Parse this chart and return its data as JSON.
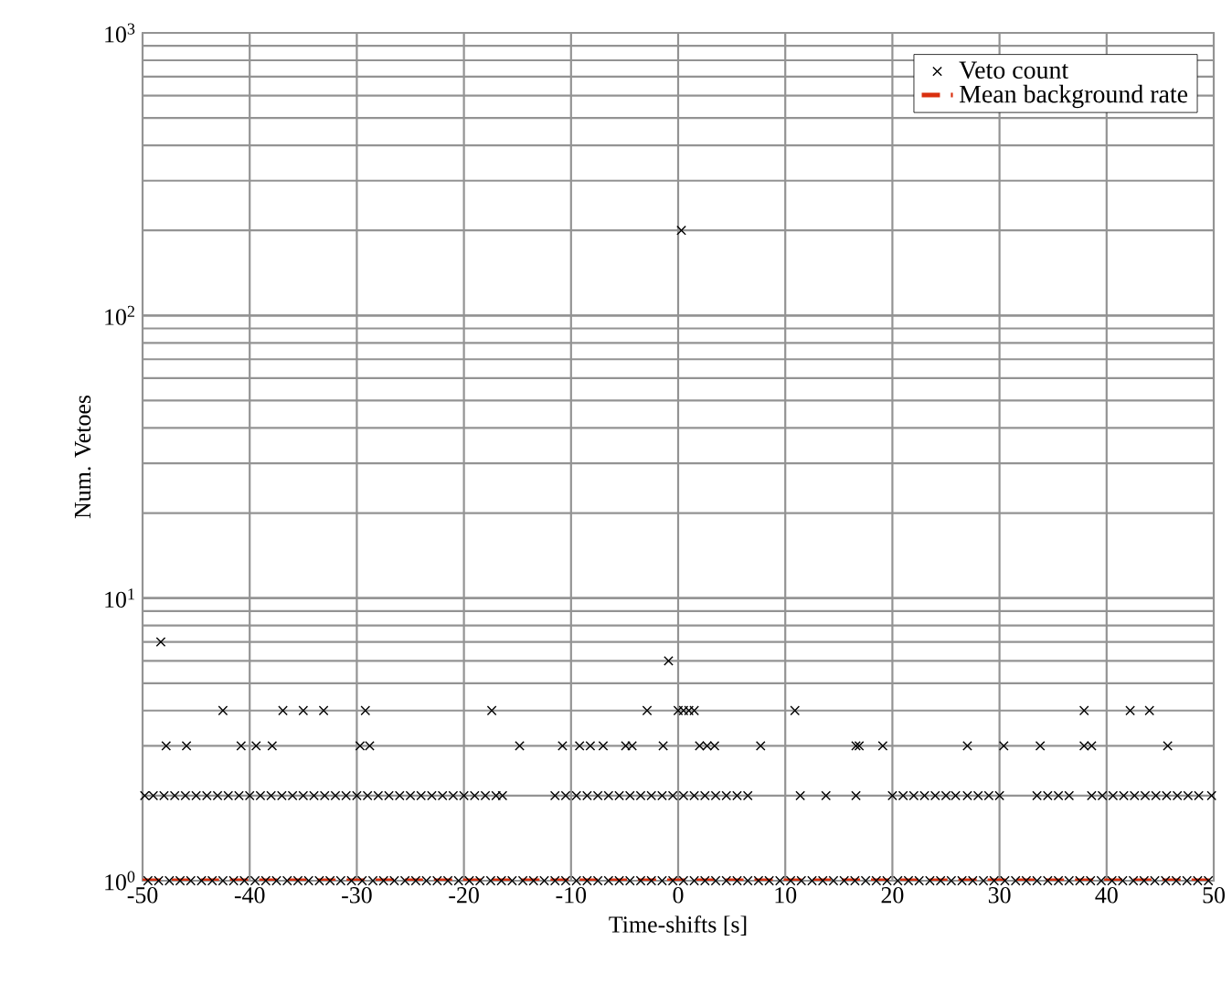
{
  "chart_data": {
    "type": "scatter",
    "xlabel": "Time-shifts [s]",
    "ylabel": "Num. Vetoes",
    "log": "y",
    "grid": true,
    "legend": "top right",
    "xlim": [
      -50,
      50
    ],
    "xticks": [
      -50,
      -40,
      -30,
      -20,
      -10,
      0,
      10,
      20,
      30,
      40,
      50
    ],
    "ylim": [
      1,
      1000
    ],
    "yticks": [
      {
        "value": 1,
        "label": "10$^{0}$"
      },
      {
        "value": 10,
        "label": "10$^{1}$"
      },
      {
        "value": 100,
        "label": "10$^{2}$"
      },
      {
        "value": 1000,
        "label": "10$^{3}$"
      }
    ],
    "series": [
      {
        "name": "Veto count",
        "color": "#000000",
        "marker": "cross",
        "x": [
          -49.5,
          -48.5,
          -47.5,
          -46.5,
          -45.5,
          -44.5,
          -43.5,
          -42.5,
          -41.5,
          -40.5,
          -39.5,
          -38.5,
          -37.5,
          -36.5,
          -35.5,
          -34.5,
          -33.5,
          -32.5,
          -31.5,
          -30.5,
          -29.5,
          -28.5,
          -27.5,
          -26.5,
          -25.5,
          -24.5,
          -23.5,
          -22.5,
          -21.5,
          -20.5,
          -19.5,
          -18.5,
          -17.5,
          -16.5,
          -15.5,
          -14.5,
          -13.5,
          -12.5,
          -11.5,
          -10.5,
          -9.5,
          -8.5,
          -7.5,
          -6.5,
          -5.5,
          -4.5,
          -3.5,
          -2.5,
          -1.5,
          -0.5,
          0.5,
          1.5,
          2.5,
          3.5,
          4.5,
          5.5,
          6.5,
          7.5,
          8.5,
          9.5,
          10.5,
          11.5,
          12.5,
          13.5,
          14.5,
          15.5,
          16.5,
          17.5,
          18.5,
          19.5,
          20.5,
          21.5,
          22.5,
          23.5,
          24.5,
          25.5,
          26.5,
          27.5,
          28.5,
          29.5,
          30.5,
          31.5,
          32.5,
          33.5,
          34.5,
          35.5,
          36.5,
          37.5,
          38.5,
          39.5,
          40.5,
          41.5,
          42.5,
          43.5,
          44.5,
          45.5,
          46.5,
          47.5,
          48.5,
          49.5,
          -49.8,
          -49,
          -48,
          -47,
          -46,
          -45,
          -44,
          -43,
          -42,
          -41,
          -40,
          -39,
          -38,
          -37,
          -36,
          -35,
          -34,
          -33,
          -32,
          -31,
          -30,
          -29,
          -28,
          -27,
          -26,
          -25,
          -24,
          -23,
          -22,
          -21,
          -20,
          -19,
          -18,
          -17,
          -16.4,
          -11.5,
          -10.5,
          -9.5,
          -8.5,
          -7.5,
          -6.5,
          -5.5,
          -4.5,
          -3.5,
          -2.5,
          -1.5,
          -0.5,
          0.5,
          1.5,
          2.5,
          3.5,
          4.5,
          5.5,
          6.5,
          11.4,
          13.8,
          16.6,
          20,
          21,
          22,
          23,
          24,
          25,
          25.9,
          27,
          28,
          29,
          30,
          33.5,
          34.5,
          35.5,
          36.5,
          38.6,
          39.6,
          40.6,
          41.6,
          42.6,
          43.6,
          44.6,
          45.6,
          46.6,
          47.6,
          48.6,
          49.8,
          -47.8,
          -45.9,
          -40.8,
          -39.4,
          -37.9,
          -29.7,
          -28.8,
          -14.8,
          -10.8,
          -9.2,
          -8.2,
          -7.0,
          -4.9,
          -4.3,
          -1.4,
          2.0,
          2.7,
          3.4,
          7.7,
          16.6,
          16.9,
          19.1,
          27.0,
          30.4,
          33.8,
          37.9,
          38.6,
          45.7,
          -42.5,
          -36.9,
          -35.0,
          -33.1,
          -29.2,
          -17.4,
          -2.9,
          0,
          0.5,
          1.0,
          1.5,
          10.9,
          37.9,
          42.2,
          44.0,
          -0.9,
          -48.3,
          0.3
        ],
        "values": [
          1,
          1,
          1,
          1,
          1,
          1,
          1,
          1,
          1,
          1,
          1,
          1,
          1,
          1,
          1,
          1,
          1,
          1,
          1,
          1,
          1,
          1,
          1,
          1,
          1,
          1,
          1,
          1,
          1,
          1,
          1,
          1,
          1,
          1,
          1,
          1,
          1,
          1,
          1,
          1,
          1,
          1,
          1,
          1,
          1,
          1,
          1,
          1,
          1,
          1,
          1,
          1,
          1,
          1,
          1,
          1,
          1,
          1,
          1,
          1,
          1,
          1,
          1,
          1,
          1,
          1,
          1,
          1,
          1,
          1,
          1,
          1,
          1,
          1,
          1,
          1,
          1,
          1,
          1,
          1,
          1,
          1,
          1,
          1,
          1,
          1,
          1,
          1,
          1,
          1,
          1,
          1,
          1,
          1,
          1,
          1,
          1,
          1,
          1,
          1,
          2,
          2,
          2,
          2,
          2,
          2,
          2,
          2,
          2,
          2,
          2,
          2,
          2,
          2,
          2,
          2,
          2,
          2,
          2,
          2,
          2,
          2,
          2,
          2,
          2,
          2,
          2,
          2,
          2,
          2,
          2,
          2,
          2,
          2,
          2,
          2,
          2,
          2,
          2,
          2,
          2,
          2,
          2,
          2,
          2,
          2,
          2,
          2,
          2,
          2,
          2,
          2,
          2,
          2,
          2,
          2,
          2,
          2,
          2,
          2,
          2,
          2,
          2,
          2,
          2,
          2,
          2,
          2,
          2,
          2,
          2,
          2,
          2,
          2,
          2,
          2,
          2,
          2,
          2,
          2,
          2,
          2,
          2,
          2,
          3,
          3,
          3,
          3,
          3,
          3,
          3,
          3,
          3,
          3,
          3,
          3,
          3,
          3,
          3,
          3,
          3,
          3,
          3,
          3,
          3,
          3,
          3,
          3,
          3,
          3,
          3,
          3,
          4,
          4,
          4,
          4,
          4,
          4,
          4,
          4,
          4,
          4,
          4,
          4,
          4,
          4,
          4,
          6,
          7,
          200
        ]
      },
      {
        "name": "Mean background rate",
        "type": "line",
        "color": "#d9300f",
        "line_style": "dashed",
        "x": [
          -50,
          50
        ],
        "values": [
          1,
          1
        ]
      }
    ]
  }
}
